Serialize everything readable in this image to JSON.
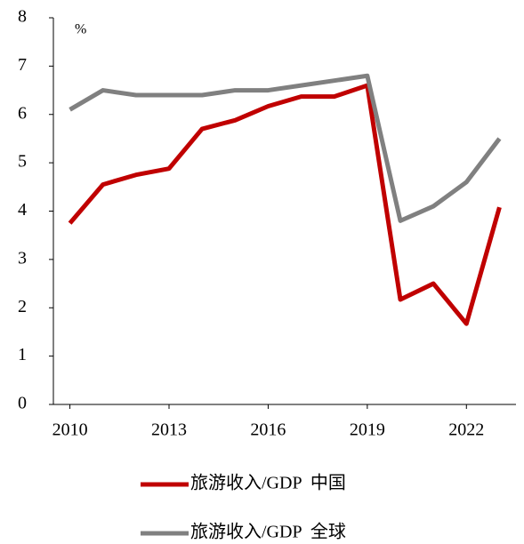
{
  "chart_data": {
    "type": "line",
    "unit_label": "%",
    "x": [
      2010,
      2011,
      2012,
      2013,
      2014,
      2015,
      2016,
      2017,
      2018,
      2019,
      2020,
      2021,
      2022,
      2023
    ],
    "series": [
      {
        "name": "旅游收入/GDP  中国",
        "color": "#c00000",
        "values": [
          3.75,
          4.55,
          4.75,
          4.88,
          5.7,
          5.88,
          6.17,
          6.37,
          6.37,
          6.6,
          2.17,
          2.5,
          1.67,
          4.08
        ]
      },
      {
        "name": "旅游收入/GDP  全球",
        "color": "#808080",
        "values": [
          6.1,
          6.5,
          6.4,
          6.4,
          6.4,
          6.5,
          6.5,
          6.6,
          6.7,
          6.8,
          3.8,
          4.1,
          4.6,
          5.5
        ]
      }
    ],
    "xlim": [
      2009.5,
      2023.5
    ],
    "xticks": [
      2010,
      2013,
      2016,
      2019,
      2022
    ],
    "ylim": [
      0,
      8
    ],
    "yticks": [
      0,
      1,
      2,
      3,
      4,
      5,
      6,
      7,
      8
    ],
    "grid": false
  }
}
